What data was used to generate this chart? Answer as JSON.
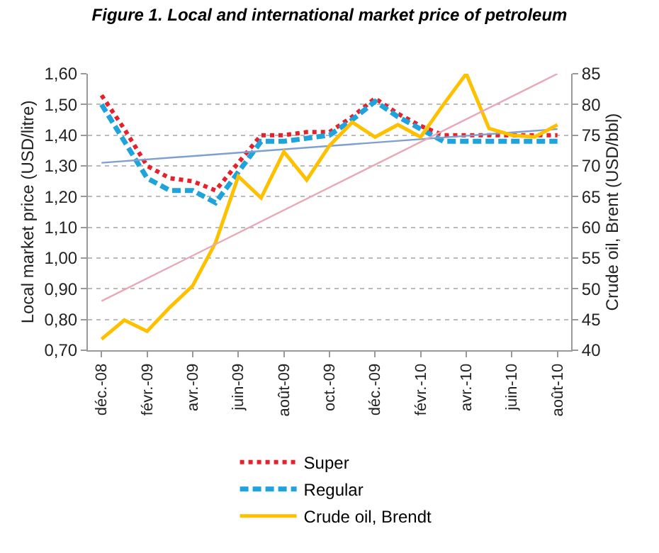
{
  "chart_data": {
    "type": "line",
    "title": "Figure 1. Local and international market price of petroleum",
    "ylabel": "Local market price (USD/litre)",
    "y2label": "Crude oil, Brent (USD/bbl)",
    "categories": [
      "déc.-08",
      null,
      "févr.-09",
      null,
      "avr.-09",
      null,
      "juin-09",
      null,
      "août-09",
      null,
      "oct.-09",
      null,
      "déc.-09",
      null,
      "févr.-10",
      null,
      "avr.-10",
      null,
      "juin-10",
      null,
      "août-10"
    ],
    "series": [
      {
        "name": "Super",
        "color": "#e8202a",
        "line_style": "dotted",
        "values": [
          1.53,
          1.42,
          1.3,
          1.26,
          1.25,
          1.22,
          1.31,
          1.4,
          1.4,
          1.41,
          1.41,
          1.46,
          1.52,
          1.47,
          1.43,
          1.4,
          1.4,
          1.4,
          1.4,
          1.4,
          1.4
        ]
      },
      {
        "name": "Regular",
        "color": "#1fa3dc",
        "line_style": "dashed",
        "values": [
          1.5,
          1.38,
          1.26,
          1.22,
          1.22,
          1.18,
          1.28,
          1.38,
          1.38,
          1.39,
          1.4,
          1.45,
          1.51,
          1.46,
          1.42,
          1.38,
          1.38,
          1.38,
          1.38,
          1.38,
          1.38
        ]
      },
      {
        "name": "Crude oil, Brendt",
        "color": "#ffc000",
        "line_style": "solid",
        "axis": "y2",
        "values": [
          41.8,
          44.9,
          43.1,
          47,
          50.5,
          57.5,
          68.3,
          64.8,
          72.3,
          67.7,
          73.3,
          77.1,
          74.7,
          76.7,
          74.7,
          80,
          85,
          76.1,
          75,
          74.7,
          76.7
        ]
      },
      {
        "color": "#7f9fd0",
        "line_style": "solid",
        "values": [
          1.31,
          null,
          null,
          null,
          null,
          null,
          null,
          null,
          null,
          null,
          null,
          null,
          null,
          null,
          null,
          null,
          null,
          null,
          null,
          null,
          1.42
        ]
      },
      {
        "color": "#e8a8b8",
        "line_style": "solid",
        "axis": "y2",
        "values": [
          48,
          null,
          null,
          null,
          null,
          null,
          null,
          null,
          null,
          null,
          null,
          null,
          null,
          null,
          null,
          null,
          null,
          null,
          null,
          null,
          85
        ]
      }
    ],
    "ylim": [
      0.7,
      1.6
    ],
    "yticks": [
      {
        "value": 0.7,
        "label": "0,70"
      },
      {
        "value": 0.8,
        "label": "0,80"
      },
      {
        "value": 0.9,
        "label": "0,90"
      },
      {
        "value": 1.0,
        "label": "1,00"
      },
      {
        "value": 1.1,
        "label": "1,10"
      },
      {
        "value": 1.2,
        "label": "1,20"
      },
      {
        "value": 1.3,
        "label": "1,30"
      },
      {
        "value": 1.4,
        "label": "1,40"
      },
      {
        "value": 1.5,
        "label": "1,50"
      },
      {
        "value": 1.6,
        "label": "1,60"
      }
    ],
    "y2lim": [
      40,
      85
    ],
    "y2ticks": [
      40,
      45,
      50,
      55,
      60,
      65,
      70,
      75,
      80,
      85
    ],
    "grid": "y",
    "legend": "bottom",
    "marker": "none"
  }
}
